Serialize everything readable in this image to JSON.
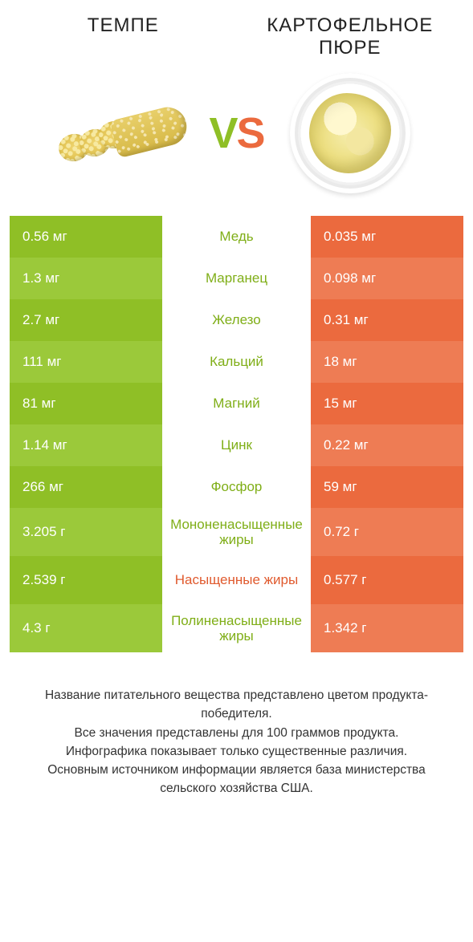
{
  "colors": {
    "left_base": "#8fbf26",
    "left_alt": "#9bc93a",
    "right_base": "#eb6a3e",
    "right_alt": "#ee7c54",
    "mid_left": "#7fae17",
    "mid_right": "#e05a2e",
    "text": "#333333",
    "bg": "#ffffff"
  },
  "header": {
    "left_title": "ТЕМПЕ",
    "right_title": "КАРТОФЕЛЬНОЕ ПЮРЕ",
    "vs_v": "V",
    "vs_s": "S"
  },
  "table": {
    "rows": [
      {
        "left": "0.56 мг",
        "label": "Медь",
        "right": "0.035 мг",
        "winner": "left",
        "tall": false
      },
      {
        "left": "1.3 мг",
        "label": "Марганец",
        "right": "0.098 мг",
        "winner": "left",
        "tall": false
      },
      {
        "left": "2.7 мг",
        "label": "Железо",
        "right": "0.31 мг",
        "winner": "left",
        "tall": false
      },
      {
        "left": "111 мг",
        "label": "Кальций",
        "right": "18 мг",
        "winner": "left",
        "tall": false
      },
      {
        "left": "81 мг",
        "label": "Магний",
        "right": "15 мг",
        "winner": "left",
        "tall": false
      },
      {
        "left": "1.14 мг",
        "label": "Цинк",
        "right": "0.22 мг",
        "winner": "left",
        "tall": false
      },
      {
        "left": "266 мг",
        "label": "Фосфор",
        "right": "59 мг",
        "winner": "left",
        "tall": false
      },
      {
        "left": "3.205 г",
        "label": "Мононенасыщенные жиры",
        "right": "0.72 г",
        "winner": "left",
        "tall": true
      },
      {
        "left": "2.539 г",
        "label": "Насыщенные жиры",
        "right": "0.577 г",
        "winner": "right",
        "tall": true
      },
      {
        "left": "4.3 г",
        "label": "Полиненасыщенные жиры",
        "right": "1.342 г",
        "winner": "left",
        "tall": true
      }
    ]
  },
  "notes": [
    "Название питательного вещества представлено цветом продукта-победителя.",
    "Все значения представлены для 100 граммов продукта.",
    "Инфографика показывает только существенные различия.",
    "Основным источником информации является база министерства сельского хозяйства США."
  ]
}
